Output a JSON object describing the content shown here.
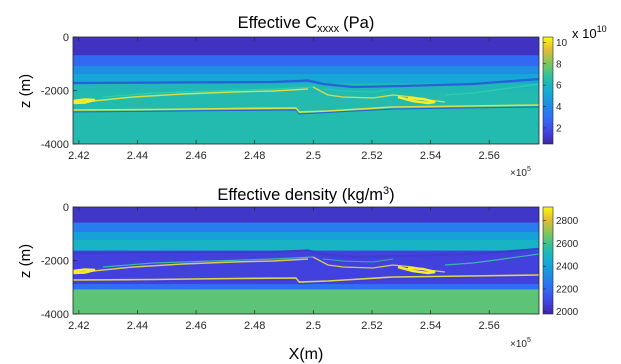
{
  "chart_data": [
    {
      "type": "heatmap",
      "title": "Effective C",
      "title_subscript": "xxxx",
      "title_unit": "(Pa)",
      "ylabel": "z (m)",
      "xlabel": "",
      "x_ticks": [
        "2.42",
        "2.44",
        "2.46",
        "2.48",
        "2.5",
        "2.52",
        "2.54",
        "2.56"
      ],
      "x_tick_values": [
        2.42,
        2.44,
        2.46,
        2.48,
        2.5,
        2.52,
        2.54,
        2.56
      ],
      "xlim": [
        2.418,
        2.577
      ],
      "x_multiplier": "×10",
      "x_multiplier_exp": "5",
      "y_ticks": [
        "0",
        "-2000",
        "-4000"
      ],
      "y_tick_values": [
        0,
        -2000,
        -4000
      ],
      "ylim": [
        -4000,
        0
      ],
      "colorbar": {
        "ticks": [
          "10",
          "8",
          "6",
          "4",
          "2"
        ],
        "tick_values": [
          10,
          8,
          6,
          4,
          2
        ],
        "range": [
          0.5,
          10.5
        ],
        "multiplier": "x 10",
        "multiplier_exp": "10"
      },
      "layers": [
        {
          "z_top": 0,
          "z_bottom": -700,
          "value": 1.0
        },
        {
          "z_top": -700,
          "z_bottom": -1100,
          "value": 2.8
        },
        {
          "z_top": -1100,
          "z_bottom": -1400,
          "value": 4.2
        },
        {
          "z_top": -1400,
          "z_bottom": -1750,
          "value": 5.2
        },
        {
          "z_top": -1750,
          "z_bottom": -2050,
          "value": 6.2
        },
        {
          "z_top": -2050,
          "z_bottom": -4000,
          "value": 6.4
        }
      ]
    },
    {
      "type": "heatmap",
      "title": "Effective density (kg/m",
      "title_superscript": "3",
      "title_close": ")",
      "ylabel": "z (m)",
      "xlabel": "X(m)",
      "x_ticks": [
        "2.42",
        "2.44",
        "2.46",
        "2.48",
        "2.5",
        "2.52",
        "2.54",
        "2.56"
      ],
      "x_tick_values": [
        2.42,
        2.44,
        2.46,
        2.48,
        2.5,
        2.52,
        2.54,
        2.56
      ],
      "xlim": [
        2.418,
        2.577
      ],
      "x_multiplier": "×10",
      "x_multiplier_exp": "5",
      "y_ticks": [
        "0",
        "-2000",
        "-4000"
      ],
      "y_tick_values": [
        0,
        -2000,
        -4000
      ],
      "ylim": [
        -4000,
        0
      ],
      "colorbar": {
        "ticks": [
          "2800",
          "2600",
          "2400",
          "2200",
          "2000"
        ],
        "tick_values": [
          2800,
          2600,
          2400,
          2200,
          2000
        ],
        "range": [
          1980,
          2920
        ]
      },
      "layers": [
        {
          "z_top": 0,
          "z_bottom": -600,
          "value": 2040
        },
        {
          "z_top": -600,
          "z_bottom": -950,
          "value": 2260
        },
        {
          "z_top": -950,
          "z_bottom": -1250,
          "value": 2400
        },
        {
          "z_top": -1250,
          "z_bottom": -1650,
          "value": 2480
        },
        {
          "z_top": -1650,
          "z_bottom": -2900,
          "value": 2080
        },
        {
          "z_top": -2900,
          "z_bottom": -3100,
          "value": 2220
        },
        {
          "z_top": -3100,
          "z_bottom": -4000,
          "value": 2640
        }
      ]
    }
  ]
}
